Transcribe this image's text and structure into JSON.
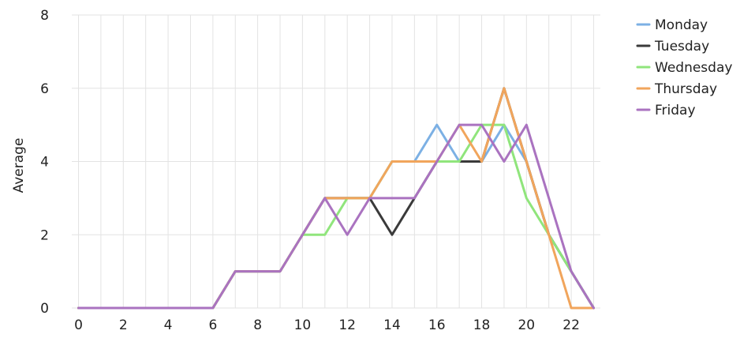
{
  "chart_data": {
    "type": "line",
    "title": "",
    "xlabel": "",
    "ylabel": "Average",
    "xlim": [
      -0.3,
      23.3
    ],
    "ylim": [
      0,
      8
    ],
    "x_ticks": [
      0,
      2,
      4,
      6,
      8,
      10,
      12,
      14,
      16,
      18,
      20,
      22
    ],
    "y_ticks": [
      0,
      2,
      4,
      6,
      8
    ],
    "grid": true,
    "legend_position": "top-right",
    "x": [
      0,
      1,
      2,
      3,
      4,
      5,
      6,
      7,
      8,
      9,
      10,
      11,
      12,
      13,
      14,
      15,
      16,
      17,
      18,
      19,
      20,
      21,
      22,
      23
    ],
    "series": [
      {
        "name": "Monday",
        "color": "#7cb0e4",
        "values": [
          0,
          0,
          0,
          0,
          0,
          0,
          0,
          1,
          1,
          1,
          2,
          3,
          3,
          3,
          4,
          4,
          5,
          4,
          4,
          5,
          4,
          2,
          1,
          0
        ]
      },
      {
        "name": "Tuesday",
        "color": "#3a3a3a",
        "values": [
          0,
          0,
          0,
          0,
          0,
          0,
          0,
          1,
          1,
          1,
          2,
          3,
          3,
          3,
          2,
          3,
          4,
          4,
          4,
          6,
          4,
          2,
          1,
          0
        ]
      },
      {
        "name": "Wednesday",
        "color": "#90e57c",
        "values": [
          0,
          0,
          0,
          0,
          0,
          0,
          0,
          1,
          1,
          1,
          2,
          2,
          3,
          3,
          4,
          4,
          4,
          4,
          5,
          5,
          3,
          2,
          1,
          0
        ]
      },
      {
        "name": "Thursday",
        "color": "#f1a55c",
        "values": [
          0,
          0,
          0,
          0,
          0,
          0,
          0,
          1,
          1,
          1,
          2,
          3,
          3,
          3,
          4,
          4,
          4,
          5,
          4,
          6,
          4,
          2,
          0,
          0
        ]
      },
      {
        "name": "Friday",
        "color": "#aa73c0",
        "values": [
          0,
          0,
          0,
          0,
          0,
          0,
          0,
          1,
          1,
          1,
          2,
          3,
          2,
          3,
          3,
          3,
          4,
          5,
          5,
          4,
          5,
          3,
          1,
          0
        ]
      }
    ]
  }
}
